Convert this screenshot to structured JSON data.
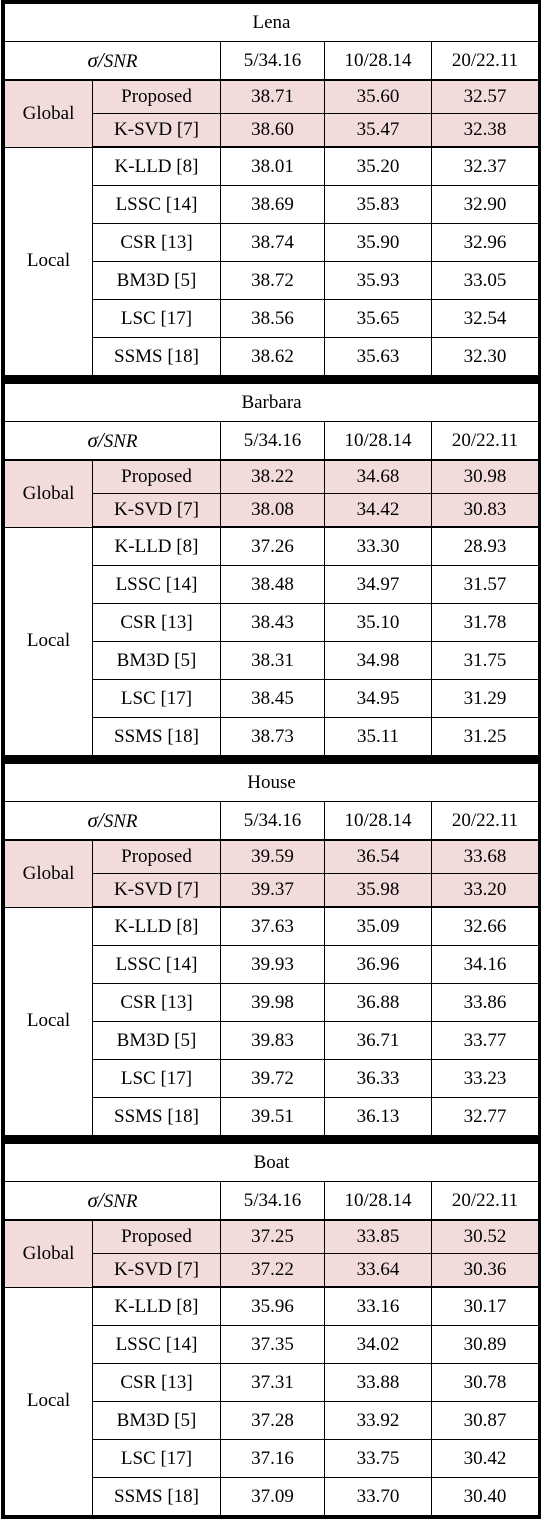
{
  "header": {
    "sigma": "σ",
    "slash": "/",
    "snr": "SNR"
  },
  "columns": [
    "5/34.16",
    "10/28.14",
    "20/22.11"
  ],
  "groups": {
    "global": "Global",
    "local": "Local"
  },
  "sections": [
    {
      "title": "Lena",
      "global": [
        {
          "method": "Proposed",
          "values": [
            "38.71",
            "35.60",
            "32.57"
          ]
        },
        {
          "method": "K-SVD [7]",
          "values": [
            "38.60",
            "35.47",
            "32.38"
          ]
        }
      ],
      "local": [
        {
          "method": "K-LLD [8]",
          "values": [
            "38.01",
            "35.20",
            "32.37"
          ]
        },
        {
          "method": "LSSC [14]",
          "values": [
            "38.69",
            "35.83",
            "32.90"
          ]
        },
        {
          "method": "CSR [13]",
          "values": [
            "38.74",
            "35.90",
            "32.96"
          ]
        },
        {
          "method": "BM3D [5]",
          "values": [
            "38.72",
            "35.93",
            "33.05"
          ]
        },
        {
          "method": "LSC [17]",
          "values": [
            "38.56",
            "35.65",
            "32.54"
          ]
        },
        {
          "method": "SSMS [18]",
          "values": [
            "38.62",
            "35.63",
            "32.30"
          ]
        }
      ]
    },
    {
      "title": "Barbara",
      "global": [
        {
          "method": "Proposed",
          "values": [
            "38.22",
            "34.68",
            "30.98"
          ]
        },
        {
          "method": "K-SVD [7]",
          "values": [
            "38.08",
            "34.42",
            "30.83"
          ]
        }
      ],
      "local": [
        {
          "method": "K-LLD [8]",
          "values": [
            "37.26",
            "33.30",
            "28.93"
          ]
        },
        {
          "method": "LSSC [14]",
          "values": [
            "38.48",
            "34.97",
            "31.57"
          ]
        },
        {
          "method": "CSR [13]",
          "values": [
            "38.43",
            "35.10",
            "31.78"
          ]
        },
        {
          "method": "BM3D [5]",
          "values": [
            "38.31",
            "34.98",
            "31.75"
          ]
        },
        {
          "method": "LSC [17]",
          "values": [
            "38.45",
            "34.95",
            "31.29"
          ]
        },
        {
          "method": "SSMS [18]",
          "values": [
            "38.73",
            "35.11",
            "31.25"
          ]
        }
      ]
    },
    {
      "title": "House",
      "global": [
        {
          "method": "Proposed",
          "values": [
            "39.59",
            "36.54",
            "33.68"
          ]
        },
        {
          "method": "K-SVD [7]",
          "values": [
            "39.37",
            "35.98",
            "33.20"
          ]
        }
      ],
      "local": [
        {
          "method": "K-LLD [8]",
          "values": [
            "37.63",
            "35.09",
            "32.66"
          ]
        },
        {
          "method": "LSSC [14]",
          "values": [
            "39.93",
            "36.96",
            "34.16"
          ]
        },
        {
          "method": "CSR [13]",
          "values": [
            "39.98",
            "36.88",
            "33.86"
          ]
        },
        {
          "method": "BM3D [5]",
          "values": [
            "39.83",
            "36.71",
            "33.77"
          ]
        },
        {
          "method": "LSC [17]",
          "values": [
            "39.72",
            "36.33",
            "33.23"
          ]
        },
        {
          "method": "SSMS [18]",
          "values": [
            "39.51",
            "36.13",
            "32.77"
          ]
        }
      ]
    },
    {
      "title": "Boat",
      "global": [
        {
          "method": "Proposed",
          "values": [
            "37.25",
            "33.85",
            "30.52"
          ]
        },
        {
          "method": "K-SVD [7]",
          "values": [
            "37.22",
            "33.64",
            "30.36"
          ]
        }
      ],
      "local": [
        {
          "method": "K-LLD [8]",
          "values": [
            "35.96",
            "33.16",
            "30.17"
          ]
        },
        {
          "method": "LSSC [14]",
          "values": [
            "37.35",
            "34.02",
            "30.89"
          ]
        },
        {
          "method": "CSR [13]",
          "values": [
            "37.31",
            "33.88",
            "30.78"
          ]
        },
        {
          "method": "BM3D [5]",
          "values": [
            "37.28",
            "33.92",
            "30.87"
          ]
        },
        {
          "method": "LSC [17]",
          "values": [
            "37.16",
            "33.75",
            "30.42"
          ]
        },
        {
          "method": "SSMS [18]",
          "values": [
            "37.09",
            "33.70",
            "30.40"
          ]
        }
      ]
    }
  ]
}
